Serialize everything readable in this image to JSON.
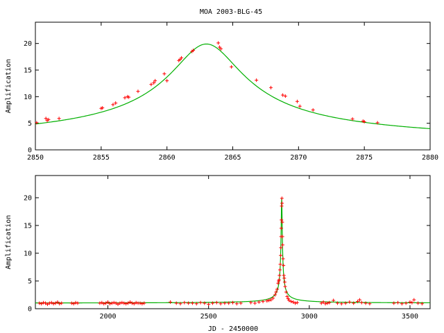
{
  "chart_data": [
    {
      "type": "scatter",
      "title": "MOA 2003-BLG-45",
      "xlabel": "",
      "ylabel": "Amplification",
      "xlim": [
        2850,
        2880
      ],
      "ylim": [
        0,
        24
      ],
      "xticks": [
        2850,
        2855,
        2860,
        2865,
        2870,
        2875,
        2880
      ],
      "yticks": [
        0,
        5,
        10,
        15,
        20
      ],
      "colors": {
        "data": "#ff0000",
        "model": "#00b000"
      },
      "model": {
        "type": "microlensing-peak",
        "t0": 2863.0,
        "peak": 19.9,
        "baseline": 1.0
      },
      "series": [
        {
          "x": [
            2850.1,
            2850.8,
            2850.9,
            2851.0,
            2851.8,
            2855.0,
            2855.1,
            2855.9,
            2856.1,
            2856.8,
            2857.0,
            2857.1,
            2857.8,
            2858.8,
            2859.0,
            2859.1,
            2859.8,
            2860.0,
            2860.9,
            2861.0,
            2861.1,
            2861.9,
            2862.0,
            2863.9,
            2864.0,
            2864.1,
            2864.9,
            2866.8,
            2867.9,
            2868.8,
            2869.0,
            2869.9,
            2870.1,
            2871.1,
            2874.1,
            2874.9,
            2875.0,
            2876.0
          ],
          "y": [
            5.1,
            5.9,
            5.5,
            5.7,
            5.9,
            7.8,
            7.9,
            8.5,
            8.8,
            9.8,
            10.0,
            9.9,
            11.0,
            12.3,
            12.6,
            13.0,
            14.3,
            13.0,
            16.8,
            17.0,
            17.3,
            18.5,
            18.7,
            20.1,
            19.3,
            19.0,
            15.6,
            13.1,
            11.7,
            10.3,
            10.1,
            9.1,
            8.2,
            7.5,
            5.8,
            5.4,
            5.3,
            5.1
          ]
        }
      ]
    },
    {
      "type": "scatter",
      "title": "",
      "xlabel": "JD - 2450000",
      "ylabel": "Amplification",
      "xlim": [
        1640,
        3600
      ],
      "ylim": [
        0,
        24
      ],
      "xticks": [
        2000,
        2500,
        3000,
        3500
      ],
      "yticks": [
        0,
        5,
        10,
        15,
        20
      ],
      "colors": {
        "data": "#ff0000",
        "model": "#00b000"
      },
      "model": {
        "type": "microlensing-peak",
        "t0": 2863.0,
        "peak": 19.9,
        "baseline": 1.0
      },
      "series": [
        {
          "x": [
            1660,
            1670,
            1680,
            1690,
            1700,
            1710,
            1720,
            1730,
            1740,
            1750,
            1760,
            1770,
            1820,
            1830,
            1840,
            1850,
            1960,
            1970,
            1980,
            1990,
            2000,
            2010,
            2020,
            2030,
            2040,
            2050,
            2060,
            2070,
            2080,
            2090,
            2100,
            2110,
            2120,
            2130,
            2140,
            2150,
            2160,
            2170,
            2180,
            2310,
            2340,
            2360,
            2380,
            2400,
            2420,
            2440,
            2460,
            2480,
            2500,
            2520,
            2540,
            2560,
            2580,
            2600,
            2620,
            2640,
            2660,
            2710,
            2730,
            2750,
            2770,
            2790,
            2800,
            2810,
            2820,
            2830,
            2835,
            2840,
            2845,
            2848,
            2850,
            2852,
            2854,
            2856,
            2858,
            2859,
            2860,
            2861,
            2862,
            2863,
            2864,
            2865,
            2866,
            2867,
            2868,
            2870,
            2872,
            2874,
            2876,
            2878,
            2880,
            2885,
            2890,
            2895,
            2900,
            2910,
            2920,
            2930,
            2940,
            3060,
            3070,
            3080,
            3090,
            3100,
            3120,
            3140,
            3160,
            3180,
            3200,
            3220,
            3240,
            3250,
            3260,
            3280,
            3300,
            3420,
            3440,
            3460,
            3480,
            3500,
            3510,
            3520,
            3540,
            3560
          ],
          "y": [
            1.0,
            0.9,
            1.1,
            1.0,
            0.8,
            1.0,
            1.1,
            0.9,
            1.0,
            1.2,
            0.9,
            1.0,
            1.0,
            0.9,
            1.1,
            1.0,
            1.0,
            1.1,
            0.9,
            1.0,
            1.2,
            0.9,
            1.0,
            1.1,
            1.0,
            0.8,
            1.0,
            1.1,
            1.0,
            0.9,
            1.0,
            1.2,
            1.0,
            0.9,
            1.1,
            1.0,
            1.0,
            0.9,
            1.0,
            1.2,
            1.0,
            0.9,
            1.1,
            1.0,
            1.0,
            0.9,
            1.1,
            1.0,
            0.8,
            1.0,
            1.1,
            0.9,
            1.0,
            1.0,
            1.1,
            0.9,
            1.0,
            1.1,
            1.0,
            1.2,
            1.3,
            1.4,
            1.5,
            1.6,
            1.9,
            2.5,
            3.0,
            3.5,
            4.6,
            5.0,
            5.2,
            6.0,
            7.0,
            8.0,
            9.6,
            11.0,
            13.0,
            14.5,
            16.0,
            18.5,
            19.9,
            19.0,
            15.6,
            13.0,
            11.5,
            9.0,
            7.8,
            6.0,
            5.5,
            4.8,
            4.0,
            3.0,
            2.2,
            1.8,
            1.5,
            1.3,
            1.2,
            1.0,
            1.1,
            1.0,
            1.2,
            0.9,
            1.0,
            1.1,
            1.5,
            1.0,
            0.9,
            1.0,
            1.2,
            1.0,
            1.3,
            1.6,
            1.1,
            1.0,
            0.9,
            1.0,
            1.1,
            0.9,
            1.0,
            1.2,
            1.1,
            1.6,
            1.0,
            0.9
          ]
        }
      ]
    }
  ]
}
